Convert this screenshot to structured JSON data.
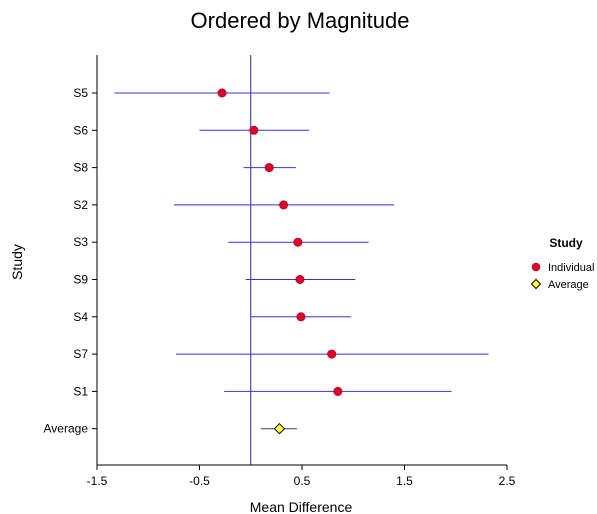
{
  "chart_data": {
    "type": "scatter",
    "subtype": "forest-plot",
    "title": "Ordered by Magnitude",
    "xlabel": "Mean Difference",
    "ylabel": "Study",
    "xlim": [
      -1.5,
      2.5
    ],
    "xticks": [
      -1.5,
      -0.5,
      0.5,
      1.5,
      2.5
    ],
    "xtick_labels": [
      "-1.5",
      "-0.5",
      "0.5",
      "1.5",
      "2.5"
    ],
    "reference_line_x": 0,
    "grid": false,
    "legend": {
      "title": "Study",
      "placement": "right",
      "entries": [
        {
          "name": "Individual",
          "marker": "circle",
          "color": "#e0002a"
        },
        {
          "name": "Average",
          "marker": "diamond",
          "color": "#ffff33"
        }
      ]
    },
    "colors": {
      "interval_line": "#3333dd",
      "reference_line": "#2a2a99",
      "individual_marker": "#e0002a",
      "average_marker": "#ffff33",
      "average_interval": "#444444"
    },
    "series": [
      {
        "name": "Individual",
        "points": [
          {
            "study": "S5",
            "mean": -0.28,
            "lower": -1.33,
            "upper": 0.77
          },
          {
            "study": "S6",
            "mean": 0.03,
            "lower": -0.5,
            "upper": 0.57
          },
          {
            "study": "S8",
            "mean": 0.18,
            "lower": -0.07,
            "upper": 0.44
          },
          {
            "study": "S2",
            "mean": 0.32,
            "lower": -0.75,
            "upper": 1.4
          },
          {
            "study": "S3",
            "mean": 0.46,
            "lower": -0.22,
            "upper": 1.15
          },
          {
            "study": "S9",
            "mean": 0.48,
            "lower": -0.05,
            "upper": 1.02
          },
          {
            "study": "S4",
            "mean": 0.49,
            "lower": 0.0,
            "upper": 0.98
          },
          {
            "study": "S7",
            "mean": 0.79,
            "lower": -0.73,
            "upper": 2.32
          },
          {
            "study": "S1",
            "mean": 0.85,
            "lower": -0.26,
            "upper": 1.96
          }
        ]
      },
      {
        "name": "Average",
        "points": [
          {
            "study": "Average",
            "mean": 0.28,
            "lower": 0.1,
            "upper": 0.45
          }
        ]
      }
    ]
  }
}
